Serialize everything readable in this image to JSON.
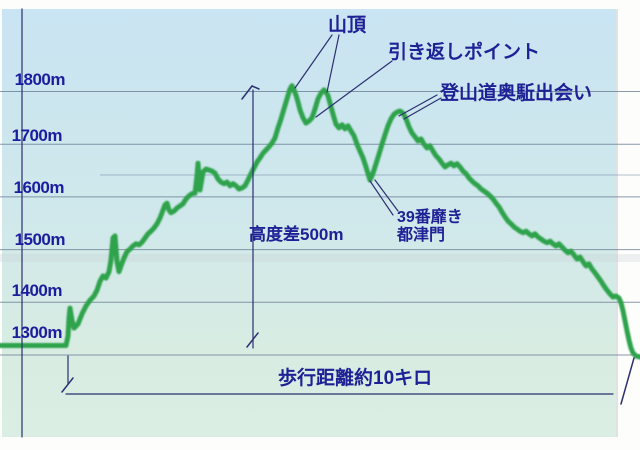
{
  "chart_data": {
    "type": "line",
    "title": "",
    "description_visible_text_only": true,
    "y_unit": "m",
    "y_ticks": [
      "1800m",
      "1700m",
      "1600m",
      "1500m",
      "1400m",
      "1300m"
    ],
    "grid_elevations": [
      1800,
      1700,
      1600,
      1500,
      1400,
      1300
    ],
    "y_range": [
      1250,
      1880
    ],
    "annotations": {
      "summit": "山頂",
      "turnaround": "引き返しポイント",
      "okugake_junction": "登山道奥駈出会い",
      "nabiki39": "39番靡き",
      "tsutsumon": "都津門",
      "elev_diff": "高度差500m",
      "distance": "歩行距離約10キロ"
    },
    "key_values": {
      "elevation_difference_m": 500,
      "walking_distance_km": 10,
      "summit_elevation_m": 1810,
      "start_elevation_m": 1318
    },
    "colors": {
      "curve": "#2da34c",
      "annotation_text": "#1e2196",
      "tick_text": "#1b1d9e",
      "gridline": "#6d7f95",
      "measure_line": "#2b3070",
      "bg_top": "#c9e4f2",
      "bg_bottom": "#dbeee4"
    },
    "elevation_profile": [
      [
        0,
        1318
      ],
      [
        66,
        1318
      ],
      [
        68,
        1336
      ],
      [
        69,
        1370
      ],
      [
        70,
        1389
      ],
      [
        72,
        1366
      ],
      [
        74,
        1351
      ],
      [
        78,
        1359
      ],
      [
        82,
        1378
      ],
      [
        86,
        1393
      ],
      [
        90,
        1404
      ],
      [
        94,
        1412
      ],
      [
        97,
        1423
      ],
      [
        100,
        1440
      ],
      [
        103,
        1450
      ],
      [
        106,
        1446
      ],
      [
        109,
        1458
      ],
      [
        111,
        1480
      ],
      [
        113,
        1522
      ],
      [
        115,
        1526
      ],
      [
        117,
        1477
      ],
      [
        119,
        1458
      ],
      [
        121,
        1469
      ],
      [
        124,
        1484
      ],
      [
        127,
        1496
      ],
      [
        130,
        1501
      ],
      [
        133,
        1507
      ],
      [
        136,
        1511
      ],
      [
        139,
        1509
      ],
      [
        142,
        1514
      ],
      [
        145,
        1522
      ],
      [
        148,
        1530
      ],
      [
        151,
        1535
      ],
      [
        154,
        1541
      ],
      [
        157,
        1549
      ],
      [
        160,
        1560
      ],
      [
        163,
        1575
      ],
      [
        165,
        1585
      ],
      [
        167,
        1588
      ],
      [
        169,
        1575
      ],
      [
        171,
        1570
      ],
      [
        174,
        1573
      ],
      [
        177,
        1579
      ],
      [
        180,
        1583
      ],
      [
        183,
        1587
      ],
      [
        186,
        1596
      ],
      [
        189,
        1602
      ],
      [
        192,
        1606
      ],
      [
        195,
        1607
      ],
      [
        197,
        1640
      ],
      [
        198,
        1664
      ],
      [
        199,
        1640
      ],
      [
        200,
        1613
      ],
      [
        203,
        1647
      ],
      [
        206,
        1653
      ],
      [
        209,
        1651
      ],
      [
        212,
        1649
      ],
      [
        215,
        1645
      ],
      [
        218,
        1634
      ],
      [
        221,
        1628
      ],
      [
        224,
        1625
      ],
      [
        227,
        1628
      ],
      [
        230,
        1621
      ],
      [
        233,
        1625
      ],
      [
        236,
        1621
      ],
      [
        239,
        1615
      ],
      [
        242,
        1617
      ],
      [
        245,
        1621
      ],
      [
        248,
        1632
      ],
      [
        251,
        1644
      ],
      [
        254,
        1655
      ],
      [
        257,
        1666
      ],
      [
        260,
        1674
      ],
      [
        263,
        1683
      ],
      [
        266,
        1689
      ],
      [
        269,
        1695
      ],
      [
        272,
        1702
      ],
      [
        275,
        1712
      ],
      [
        278,
        1731
      ],
      [
        281,
        1748
      ],
      [
        284,
        1767
      ],
      [
        287,
        1786
      ],
      [
        290,
        1805
      ],
      [
        292,
        1811
      ],
      [
        294,
        1803
      ],
      [
        296,
        1793
      ],
      [
        298,
        1780
      ],
      [
        300,
        1765
      ],
      [
        303,
        1750
      ],
      [
        306,
        1740
      ],
      [
        309,
        1744
      ],
      [
        312,
        1750
      ],
      [
        315,
        1767
      ],
      [
        318,
        1786
      ],
      [
        321,
        1797
      ],
      [
        324,
        1803
      ],
      [
        326,
        1799
      ],
      [
        328,
        1792
      ],
      [
        330,
        1778
      ],
      [
        333,
        1757
      ],
      [
        336,
        1738
      ],
      [
        339,
        1731
      ],
      [
        342,
        1737
      ],
      [
        345,
        1729
      ],
      [
        348,
        1735
      ],
      [
        351,
        1725
      ],
      [
        354,
        1716
      ],
      [
        357,
        1700
      ],
      [
        360,
        1687
      ],
      [
        363,
        1674
      ],
      [
        366,
        1657
      ],
      [
        368,
        1644
      ],
      [
        370,
        1632
      ],
      [
        373,
        1645
      ],
      [
        376,
        1663
      ],
      [
        379,
        1681
      ],
      [
        382,
        1700
      ],
      [
        385,
        1718
      ],
      [
        388,
        1735
      ],
      [
        391,
        1748
      ],
      [
        394,
        1757
      ],
      [
        397,
        1761
      ],
      [
        400,
        1763
      ],
      [
        403,
        1759
      ],
      [
        406,
        1748
      ],
      [
        409,
        1733
      ],
      [
        412,
        1721
      ],
      [
        415,
        1714
      ],
      [
        418,
        1706
      ],
      [
        421,
        1710
      ],
      [
        424,
        1700
      ],
      [
        427,
        1693
      ],
      [
        430,
        1697
      ],
      [
        433,
        1687
      ],
      [
        436,
        1678
      ],
      [
        439,
        1672
      ],
      [
        442,
        1664
      ],
      [
        445,
        1657
      ],
      [
        448,
        1661
      ],
      [
        451,
        1664
      ],
      [
        454,
        1659
      ],
      [
        457,
        1663
      ],
      [
        460,
        1657
      ],
      [
        463,
        1649
      ],
      [
        466,
        1644
      ],
      [
        469,
        1636
      ],
      [
        472,
        1630
      ],
      [
        475,
        1625
      ],
      [
        478,
        1621
      ],
      [
        481,
        1615
      ],
      [
        484,
        1611
      ],
      [
        487,
        1607
      ],
      [
        490,
        1602
      ],
      [
        493,
        1596
      ],
      [
        496,
        1588
      ],
      [
        499,
        1581
      ],
      [
        502,
        1571
      ],
      [
        505,
        1562
      ],
      [
        508,
        1554
      ],
      [
        511,
        1549
      ],
      [
        514,
        1543
      ],
      [
        517,
        1539
      ],
      [
        520,
        1535
      ],
      [
        523,
        1532
      ],
      [
        526,
        1535
      ],
      [
        529,
        1530
      ],
      [
        532,
        1526
      ],
      [
        535,
        1530
      ],
      [
        538,
        1524
      ],
      [
        541,
        1520
      ],
      [
        544,
        1516
      ],
      [
        547,
        1513
      ],
      [
        550,
        1516
      ],
      [
        553,
        1511
      ],
      [
        556,
        1507
      ],
      [
        559,
        1511
      ],
      [
        562,
        1505
      ],
      [
        565,
        1499
      ],
      [
        568,
        1494
      ],
      [
        571,
        1497
      ],
      [
        574,
        1490
      ],
      [
        577,
        1482
      ],
      [
        580,
        1486
      ],
      [
        583,
        1477
      ],
      [
        586,
        1469
      ],
      [
        589,
        1473
      ],
      [
        592,
        1463
      ],
      [
        595,
        1456
      ],
      [
        598,
        1448
      ],
      [
        601,
        1440
      ],
      [
        604,
        1431
      ],
      [
        607,
        1423
      ],
      [
        610,
        1416
      ],
      [
        613,
        1410
      ],
      [
        616,
        1412
      ],
      [
        619,
        1408
      ],
      [
        621,
        1399
      ],
      [
        623,
        1384
      ],
      [
        625,
        1365
      ],
      [
        627,
        1346
      ],
      [
        629,
        1328
      ],
      [
        631,
        1313
      ],
      [
        633,
        1304
      ],
      [
        636,
        1298
      ],
      [
        640,
        1296
      ]
    ],
    "lines": [
      {
        "kind": "axis-vertical",
        "pts": [
          22,
          9,
          22,
          437
        ]
      },
      {
        "kind": "elev-diff-vertical",
        "pts": [
          253,
          90,
          253,
          348
        ]
      },
      {
        "kind": "elev-diff-tick-top-a",
        "pts": [
          242,
          99,
          252,
          86
        ]
      },
      {
        "kind": "elev-diff-tick-top-b",
        "pts": [
          252,
          86,
          259,
          89
        ]
      },
      {
        "kind": "elev-diff-tick-bottom",
        "pts": [
          247,
          347,
          258,
          333
        ]
      },
      {
        "kind": "distance-line",
        "pts": [
          66,
          394,
          613,
          394
        ]
      },
      {
        "kind": "distance-riser-left",
        "pts": [
          68,
          356,
          68,
          384
        ]
      },
      {
        "kind": "distance-slash-left",
        "pts": [
          62,
          392,
          73,
          378
        ]
      },
      {
        "kind": "distance-slash-right",
        "pts": [
          621,
          404,
          634,
          358
        ]
      },
      {
        "kind": "pointer-summit-1",
        "pts": [
          332,
          35,
          295,
          88
        ]
      },
      {
        "kind": "pointer-summit-2",
        "pts": [
          339,
          35,
          327,
          92
        ]
      },
      {
        "kind": "pointer-turnaround",
        "pts": [
          392,
          61,
          316,
          117
        ]
      },
      {
        "kind": "pointer-okugake-1",
        "pts": [
          399,
          116,
          437,
          95
        ]
      },
      {
        "kind": "pointer-okugake-2",
        "pts": [
          404,
          119,
          441,
          98
        ]
      },
      {
        "kind": "pointer-nabiki-1",
        "pts": [
          370,
          181,
          393,
          215
        ]
      },
      {
        "kind": "pointer-nabiki-2",
        "pts": [
          375,
          180,
          398,
          211
        ]
      }
    ]
  }
}
